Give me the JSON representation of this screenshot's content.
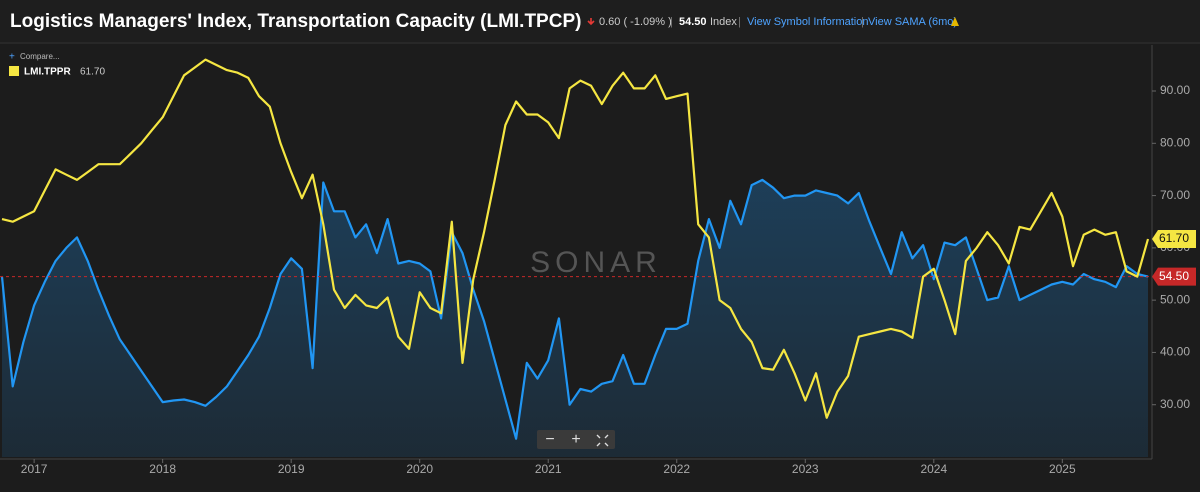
{
  "header": {
    "title": "Logistics Managers' Index, Transportation Capacity (LMI.TPCP)",
    "change": "0.60 ( -1.09% )",
    "unit": "Index",
    "link1": "View Symbol Information",
    "link2": "View SAMA (6mo)",
    "compare": "Compare...",
    "watermark": "SONAR"
  },
  "chart_data": {
    "type": "line",
    "x": [
      "2016-10",
      "2016-11",
      "2016-12",
      "2017-01",
      "2017-02",
      "2017-03",
      "2017-04",
      "2017-05",
      "2017-06",
      "2017-07",
      "2017-08",
      "2017-09",
      "2017-10",
      "2017-11",
      "2017-12",
      "2018-01",
      "2018-02",
      "2018-03",
      "2018-04",
      "2018-05",
      "2018-06",
      "2018-07",
      "2018-08",
      "2018-09",
      "2018-10",
      "2018-11",
      "2018-12",
      "2019-01",
      "2019-02",
      "2019-03",
      "2019-04",
      "2019-05",
      "2019-06",
      "2019-07",
      "2019-08",
      "2019-09",
      "2019-10",
      "2019-11",
      "2019-12",
      "2020-01",
      "2020-02",
      "2020-03",
      "2020-04",
      "2020-05",
      "2020-06",
      "2020-07",
      "2020-08",
      "2020-09",
      "2020-10",
      "2020-11",
      "2020-12",
      "2021-01",
      "2021-02",
      "2021-03",
      "2021-04",
      "2021-05",
      "2021-06",
      "2021-07",
      "2021-08",
      "2021-09",
      "2021-10",
      "2021-11",
      "2021-12",
      "2022-01",
      "2022-02",
      "2022-03",
      "2022-04",
      "2022-05",
      "2022-06",
      "2022-07",
      "2022-08",
      "2022-09",
      "2022-10",
      "2022-11",
      "2022-12",
      "2023-01",
      "2023-02",
      "2023-03",
      "2023-04",
      "2023-05",
      "2023-06",
      "2023-07",
      "2023-08",
      "2023-09",
      "2023-10",
      "2023-11",
      "2023-12",
      "2024-01",
      "2024-02",
      "2024-03",
      "2024-04",
      "2024-05",
      "2024-06",
      "2024-07",
      "2024-08",
      "2024-09",
      "2024-10",
      "2024-11",
      "2024-12",
      "2025-01",
      "2025-02",
      "2025-03",
      "2025-04",
      "2025-05",
      "2025-06",
      "2025-07",
      "2025-08",
      "2025-09"
    ],
    "series": [
      {
        "color": "#2196f3",
        "area": true,
        "last_label": "54.50",
        "tag_color": "#c62828",
        "values": [
          54.5,
          33.5,
          42,
          49,
          53.5,
          57.5,
          60,
          62,
          57.5,
          52,
          47,
          42.5,
          39.5,
          36.5,
          33.5,
          30.5,
          30.8,
          31,
          30.5,
          29.8,
          31.5,
          33.5,
          36.5,
          39.5,
          43,
          48.5,
          55,
          58,
          56,
          37,
          72.5,
          67,
          67,
          62,
          64.5,
          59,
          65.5,
          57,
          57.5,
          57,
          55.5,
          46.5,
          63,
          59,
          52,
          46,
          38.5,
          31,
          23.5,
          38,
          35,
          38.5,
          46.5,
          30,
          33,
          32.5,
          34,
          34.5,
          39.5,
          34,
          34,
          39.5,
          44.5,
          44.5,
          45.5,
          57.5,
          65.5,
          60,
          69,
          64.5,
          72,
          73,
          71.5,
          69.5,
          70,
          70,
          71,
          70.5,
          70,
          68.5,
          70.5,
          65,
          60,
          55,
          63,
          58,
          60.5,
          54,
          61,
          60.5,
          62,
          56,
          50,
          50.5,
          56.5,
          50,
          51,
          52,
          53,
          53.5,
          53,
          55,
          54,
          53.5,
          52.5,
          56.5,
          55,
          54.5
        ]
      },
      {
        "name": "LMI.TPPR",
        "color": "#f5e642",
        "area": false,
        "last_label": "61.70",
        "tag_color": "#f5e642",
        "values": [
          65.5,
          65,
          66,
          67,
          71,
          75,
          74,
          73,
          74.5,
          76,
          76,
          76,
          78,
          80,
          82.5,
          85,
          89,
          93,
          94.5,
          96,
          95,
          94,
          93.5,
          92.5,
          89,
          87,
          80,
          74.5,
          69.5,
          74,
          64.5,
          52,
          48.5,
          51,
          49,
          48.5,
          50.5,
          43,
          40.7,
          51.5,
          48.5,
          47.5,
          65,
          38,
          54,
          63,
          73,
          83.5,
          88,
          85.5,
          85.5,
          84,
          81,
          90.5,
          92,
          91,
          87.5,
          91,
          93.5,
          90.5,
          90.5,
          93,
          88.5,
          89,
          89.5,
          64.5,
          62,
          50,
          48.5,
          44.5,
          42,
          37,
          36.7,
          40.5,
          36,
          30.8,
          36,
          27.5,
          32.5,
          35.5,
          43,
          43.5,
          44,
          44.5,
          44,
          42.8,
          54.5,
          56,
          50,
          43.5,
          57.5,
          60,
          63,
          60.5,
          57,
          64,
          63.5,
          67,
          70.5,
          66,
          56.5,
          62.5,
          63.5,
          62.5,
          63,
          55.5,
          54.5,
          61.7
        ]
      }
    ],
    "xlim": [
      "2016-10",
      "2025-09"
    ],
    "xticks": [
      {
        "value": "2017-01",
        "label": "2017"
      },
      {
        "value": "2018-01",
        "label": "2018"
      },
      {
        "value": "2019-01",
        "label": "2019"
      },
      {
        "value": "2020-01",
        "label": "2020"
      },
      {
        "value": "2021-01",
        "label": "2021"
      },
      {
        "value": "2022-01",
        "label": "2022"
      },
      {
        "value": "2023-01",
        "label": "2023"
      },
      {
        "value": "2024-01",
        "label": "2024"
      },
      {
        "value": "2025-01",
        "label": "2025"
      }
    ],
    "ylim": [
      20,
      98.8
    ],
    "yticks": [
      {
        "value": 30,
        "label": "30.00"
      },
      {
        "value": 40,
        "label": "40.00"
      },
      {
        "value": 50,
        "label": "50.00"
      },
      {
        "value": 60,
        "label": "60.00"
      },
      {
        "value": 70,
        "label": "70.00"
      },
      {
        "value": 80,
        "label": "80.00"
      },
      {
        "value": 90,
        "label": "90.00"
      }
    ]
  }
}
